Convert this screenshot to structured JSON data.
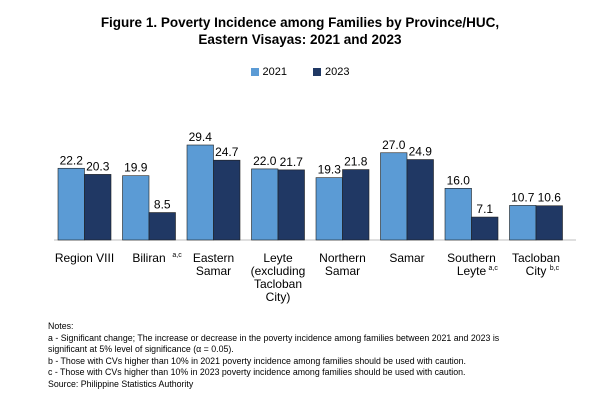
{
  "title_line1": "Figure 1. Poverty Incidence among Families by Province/HUC,",
  "title_line2": "Eastern Visayas: 2021 and 2023",
  "legend": [
    {
      "label": "2021",
      "color": "#5b9bd5"
    },
    {
      "label": "2023",
      "color": "#203864"
    }
  ],
  "chart_data": {
    "type": "bar",
    "categories": [
      {
        "lines": [
          "Region VIII"
        ],
        "sup": ""
      },
      {
        "lines": [
          "Biliran"
        ],
        "sup": "a,c"
      },
      {
        "lines": [
          "Eastern",
          "Samar"
        ],
        "sup": ""
      },
      {
        "lines": [
          "Leyte",
          "(excluding",
          "Tacloban",
          "City)"
        ],
        "sup": ""
      },
      {
        "lines": [
          "Northern",
          "Samar"
        ],
        "sup": ""
      },
      {
        "lines": [
          "Samar"
        ],
        "sup": ""
      },
      {
        "lines": [
          "Southern",
          "Leyte"
        ],
        "sup": "a,c"
      },
      {
        "lines": [
          "Tacloban",
          "City"
        ],
        "sup": "b,c"
      }
    ],
    "series": [
      {
        "name": "2021",
        "color": "#5b9bd5",
        "values": [
          22.2,
          19.9,
          29.4,
          22.0,
          19.3,
          27.0,
          16.0,
          10.7
        ]
      },
      {
        "name": "2023",
        "color": "#203864",
        "values": [
          20.3,
          8.5,
          24.7,
          21.7,
          21.8,
          24.9,
          7.1,
          10.6
        ]
      }
    ],
    "value_labels": [
      [
        "22.2",
        "19.9",
        "29.4",
        "22.0",
        "19.3",
        "27.0",
        "16.0",
        "10.7"
      ],
      [
        "20.3",
        "8.5",
        "24.7",
        "21.7",
        "21.8",
        "24.9",
        "7.1",
        "10.6"
      ]
    ],
    "title": "Figure 1. Poverty Incidence among Families by Province/HUC, Eastern Visayas: 2021 and 2023",
    "xlabel": "",
    "ylabel": "",
    "ylim": [
      0,
      30
    ],
    "grid": false,
    "legend_position": "top-center"
  },
  "notes": [
    "Notes:",
    "a - Significant change; The increase or decrease in the poverty incidence among families between 2021 and 2023 is",
    "significant at 5% level of significance (α = 0.05).",
    "b - Those with CVs higher than 10% in 2021 poverty incidence among families should be used with caution.",
    "c - Those with CVs higher than 10% in 2023 poverty incidence among families should be used with caution.",
    "Source: Philippine Statistics Authority"
  ]
}
